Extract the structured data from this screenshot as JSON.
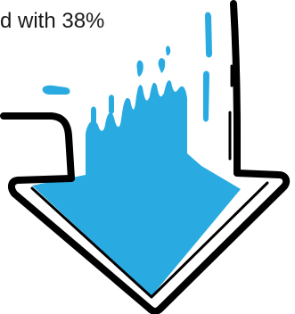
{
  "caption": {
    "text": "d with 38%",
    "color": "#1a1a1a"
  },
  "illustration": {
    "icon": "down-arrow-icon",
    "fill_color": "#29abe2",
    "outline_color": "#000000",
    "fill_level_percent": 38
  }
}
